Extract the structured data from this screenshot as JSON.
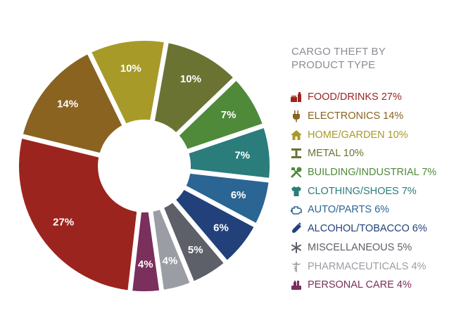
{
  "legend_title_lines": [
    "CARGO THEFT BY",
    "PRODUCT TYPE"
  ],
  "chart_data": {
    "type": "pie",
    "title": "CARGO THEFT BY PRODUCT TYPE",
    "legend_position": "right",
    "slices": [
      {
        "name": "FOOD/DRINKS",
        "legend_label": "FOOD/DRINKS 27%",
        "label": "27%",
        "value": 27,
        "color": "#9c241e",
        "icon": "food-drinks-icon"
      },
      {
        "name": "ELECTRONICS",
        "legend_label": "ELECTRONICS 14%",
        "label": "14%",
        "value": 14,
        "color": "#8a6320",
        "icon": "electronics-plug-icon"
      },
      {
        "name": "HOME/GARDEN",
        "legend_label": "HOME/GARDEN 10%",
        "label": "10%",
        "value": 10,
        "color": "#a89a28",
        "icon": "home-icon"
      },
      {
        "name": "METAL",
        "legend_label": "METAL 10%",
        "label": "10%",
        "value": 10,
        "color": "#6b7333",
        "icon": "metal-beam-icon"
      },
      {
        "name": "BUILDING/INDUSTRIAL",
        "legend_label": "BUILDING/INDUSTRIAL 7%",
        "label": "7%",
        "value": 7,
        "color": "#4e8a3a",
        "icon": "tools-icon"
      },
      {
        "name": "CLOTHING/SHOES",
        "legend_label": "CLOTHING/SHOES 7%",
        "label": "7%",
        "value": 7,
        "color": "#2a7d7b",
        "icon": "shirt-icon"
      },
      {
        "name": "AUTO/PARTS",
        "legend_label": "AUTO/PARTS 6%",
        "label": "6%",
        "value": 6,
        "color": "#2a6594",
        "icon": "engine-icon"
      },
      {
        "name": "ALCOHOL/TOBACCO",
        "legend_label": "ALCOHOL/TOBACCO 6%",
        "label": "6%",
        "value": 6,
        "color": "#22417a",
        "icon": "bottle-icon"
      },
      {
        "name": "MISCELLANEOUS",
        "legend_label": "MISCELLANEOUS 5%",
        "label": "5%",
        "value": 5,
        "color": "#5d6068",
        "icon": "asterisk-icon"
      },
      {
        "name": "PHARMACEUTICALS",
        "legend_label": "PHARMACEUTICALS 4%",
        "label": "4%",
        "value": 4,
        "color": "#9a9da3",
        "icon": "caduceus-icon"
      },
      {
        "name": "PERSONAL CARE",
        "legend_label": "PERSONAL CARE 4%",
        "label": "4%",
        "value": 4,
        "color": "#7a2f5c",
        "icon": "personal-care-icon"
      }
    ]
  }
}
